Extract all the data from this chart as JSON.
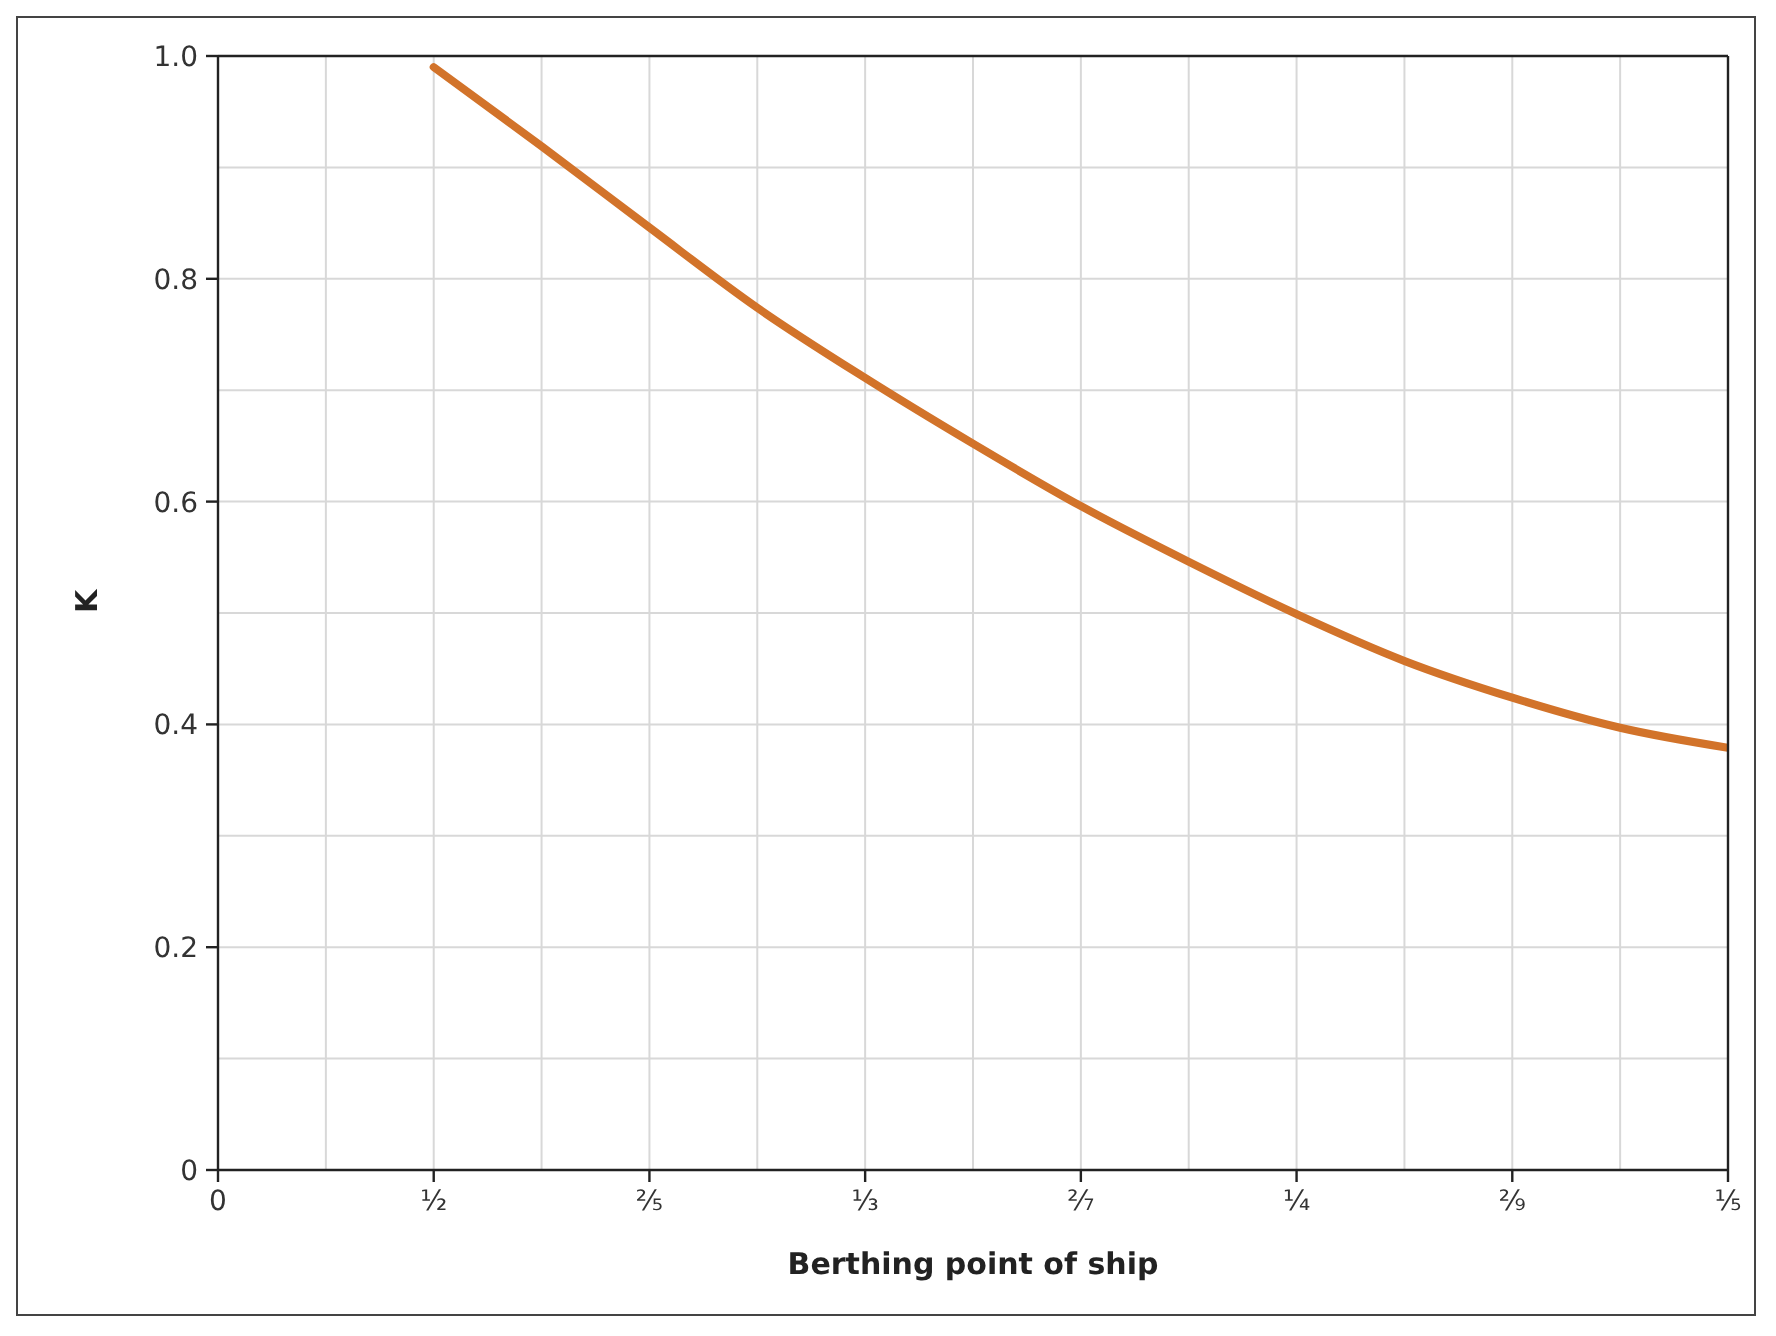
{
  "chart_data": {
    "type": "line",
    "xlabel": "Berthing point of ship",
    "ylabel": "K",
    "categories": [
      "0",
      null,
      "¹⁄₂",
      null,
      "²⁄₅",
      null,
      "¹⁄₃",
      null,
      "²⁄₇",
      null,
      "¹⁄₄",
      null,
      "²⁄₉",
      null,
      "¹⁄₅"
    ],
    "series": [
      {
        "color": "#d2732a",
        "values": [
          null,
          null,
          0.99,
          0.919,
          0.846,
          0.774,
          0.711,
          0.652,
          0.596,
          0.546,
          0.499,
          0.457,
          0.424,
          0.397,
          0.379
        ]
      }
    ],
    "ylim": [
      0,
      1
    ],
    "yticks": [
      {
        "value": 0,
        "label": "0"
      },
      {
        "value": 0.1,
        "label": null
      },
      {
        "value": 0.2,
        "label": "0.2"
      },
      {
        "value": 0.3,
        "label": null
      },
      {
        "value": 0.4,
        "label": "0.4"
      },
      {
        "value": 0.5,
        "label": null
      },
      {
        "value": 0.6,
        "label": "0.6"
      },
      {
        "value": 0.7,
        "label": null
      },
      {
        "value": 0.8,
        "label": "0.8"
      },
      {
        "value": 0.9,
        "label": null
      },
      {
        "value": 1,
        "label": "1.0"
      }
    ],
    "grid": true,
    "marker": "none",
    "line_style": "solid"
  }
}
